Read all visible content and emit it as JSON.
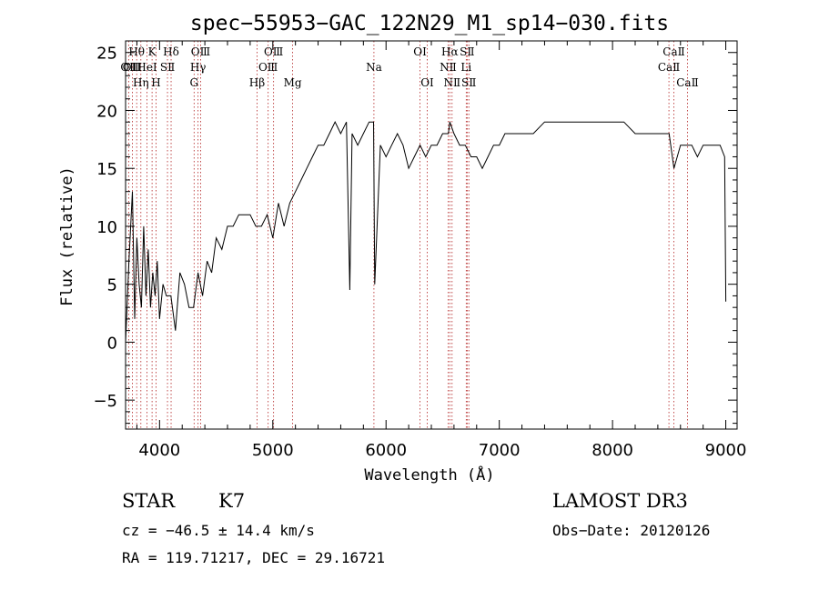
{
  "chart_data": {
    "type": "line",
    "title": "spec−55953−GAC_122N29_M1_sp14−030.fits",
    "xlabel": "Wavelength (Å)",
    "ylabel": "Flux (relative)",
    "xlim": [
      3700,
      9100
    ],
    "ylim": [
      -7.5,
      26
    ],
    "xticks": [
      4000,
      5000,
      6000,
      7000,
      8000,
      9000
    ],
    "yticks": [
      -5,
      0,
      5,
      10,
      15,
      20,
      25
    ],
    "grid": false,
    "series": [
      {
        "name": "flux",
        "x": [
          3700,
          3730,
          3760,
          3780,
          3800,
          3820,
          3840,
          3860,
          3880,
          3900,
          3920,
          3940,
          3960,
          3980,
          4000,
          4030,
          4060,
          4100,
          4140,
          4180,
          4220,
          4260,
          4300,
          4340,
          4380,
          4420,
          4460,
          4500,
          4550,
          4600,
          4650,
          4700,
          4750,
          4800,
          4850,
          4900,
          4950,
          5000,
          5050,
          5100,
          5150,
          5200,
          5250,
          5300,
          5350,
          5400,
          5450,
          5500,
          5550,
          5600,
          5650,
          5680,
          5700,
          5750,
          5800,
          5850,
          5890,
          5900,
          5950,
          6000,
          6050,
          6100,
          6150,
          6200,
          6250,
          6300,
          6350,
          6400,
          6450,
          6500,
          6550,
          6563,
          6600,
          6650,
          6700,
          6750,
          6800,
          6850,
          6900,
          6950,
          7000,
          7050,
          7100,
          7150,
          7200,
          7300,
          7400,
          7500,
          7600,
          7700,
          7800,
          7900,
          8000,
          8100,
          8200,
          8300,
          8400,
          8450,
          8500,
          8542,
          8600,
          8662,
          8700,
          8750,
          8800,
          8850,
          8900,
          8950,
          8990,
          9000
        ],
        "values": [
          0,
          7,
          13,
          2,
          9,
          5,
          3,
          10,
          4,
          8,
          3,
          6,
          4,
          7,
          2,
          5,
          4,
          4,
          1,
          6,
          5,
          3,
          3,
          6,
          4,
          7,
          6,
          9,
          8,
          10,
          10,
          11,
          11,
          11,
          10,
          10,
          11,
          9,
          12,
          10,
          12,
          13,
          14,
          15,
          16,
          17,
          17,
          18,
          19,
          18,
          19,
          4.5,
          18,
          17,
          18,
          19,
          19,
          5,
          17,
          16,
          17,
          18,
          17,
          15,
          16,
          17,
          16,
          17,
          17,
          18,
          18,
          19,
          18,
          17,
          17,
          16,
          16,
          15,
          16,
          17,
          17,
          18,
          18,
          18,
          18,
          18,
          19,
          19,
          19,
          19,
          19,
          19,
          19,
          19,
          18,
          18,
          18,
          18,
          18,
          15,
          17,
          17,
          17,
          16,
          17,
          17,
          17,
          17,
          16,
          3.5
        ]
      }
    ],
    "spectral_lines": [
      {
        "label": "OⅡ",
        "x": 3727,
        "row": 2
      },
      {
        "label": "Hθ",
        "x": 3798,
        "row": 1
      },
      {
        "label": "OⅢ",
        "x": 3760,
        "row": 2
      },
      {
        "label": "Hη",
        "x": 3835,
        "row": 3
      },
      {
        "label": "HeI",
        "x": 3889,
        "row": 2
      },
      {
        "label": "K",
        "x": 3934,
        "row": 1
      },
      {
        "label": "H",
        "x": 3969,
        "row": 3
      },
      {
        "label": "SⅡ",
        "x": 4070,
        "row": 2
      },
      {
        "label": "Hδ",
        "x": 4102,
        "row": 1
      },
      {
        "label": "G",
        "x": 4305,
        "row": 3
      },
      {
        "label": "OⅢ",
        "x": 4363,
        "row": 1
      },
      {
        "label": "Hγ",
        "x": 4340,
        "row": 2
      },
      {
        "label": "Hβ",
        "x": 4861,
        "row": 3
      },
      {
        "label": "OⅢ",
        "x": 4959,
        "row": 2
      },
      {
        "label": "OⅢ",
        "x": 5007,
        "row": 1
      },
      {
        "label": "Mg",
        "x": 5175,
        "row": 3
      },
      {
        "label": "Na",
        "x": 5893,
        "row": 2
      },
      {
        "label": "OⅠ",
        "x": 6300,
        "row": 1
      },
      {
        "label": "OⅠ",
        "x": 6364,
        "row": 3
      },
      {
        "label": "NⅡ",
        "x": 6548,
        "row": 2
      },
      {
        "label": "Hα",
        "x": 6563,
        "row": 1
      },
      {
        "label": "NⅡ",
        "x": 6583,
        "row": 3
      },
      {
        "label": "SⅡ",
        "x": 6716,
        "row": 1
      },
      {
        "label": "Li",
        "x": 6708,
        "row": 2
      },
      {
        "label": "SⅡ",
        "x": 6731,
        "row": 3
      },
      {
        "label": "CaⅡ",
        "x": 8498,
        "row": 2
      },
      {
        "label": "CaⅡ",
        "x": 8542,
        "row": 1
      },
      {
        "label": "CaⅡ",
        "x": 8662,
        "row": 3
      }
    ]
  },
  "info": {
    "object_class": "STAR",
    "subclass": "K7",
    "survey": "LAMOST DR3",
    "redshift": "cz = −46.5 ± 14.4 km/s",
    "obs_date": "Obs−Date: 20120126",
    "coords": "RA = 119.71217, DEC =  29.16721"
  },
  "colors": {
    "spectrum": "#000000",
    "line_markers": "#b22222",
    "background": "#ffffff"
  }
}
